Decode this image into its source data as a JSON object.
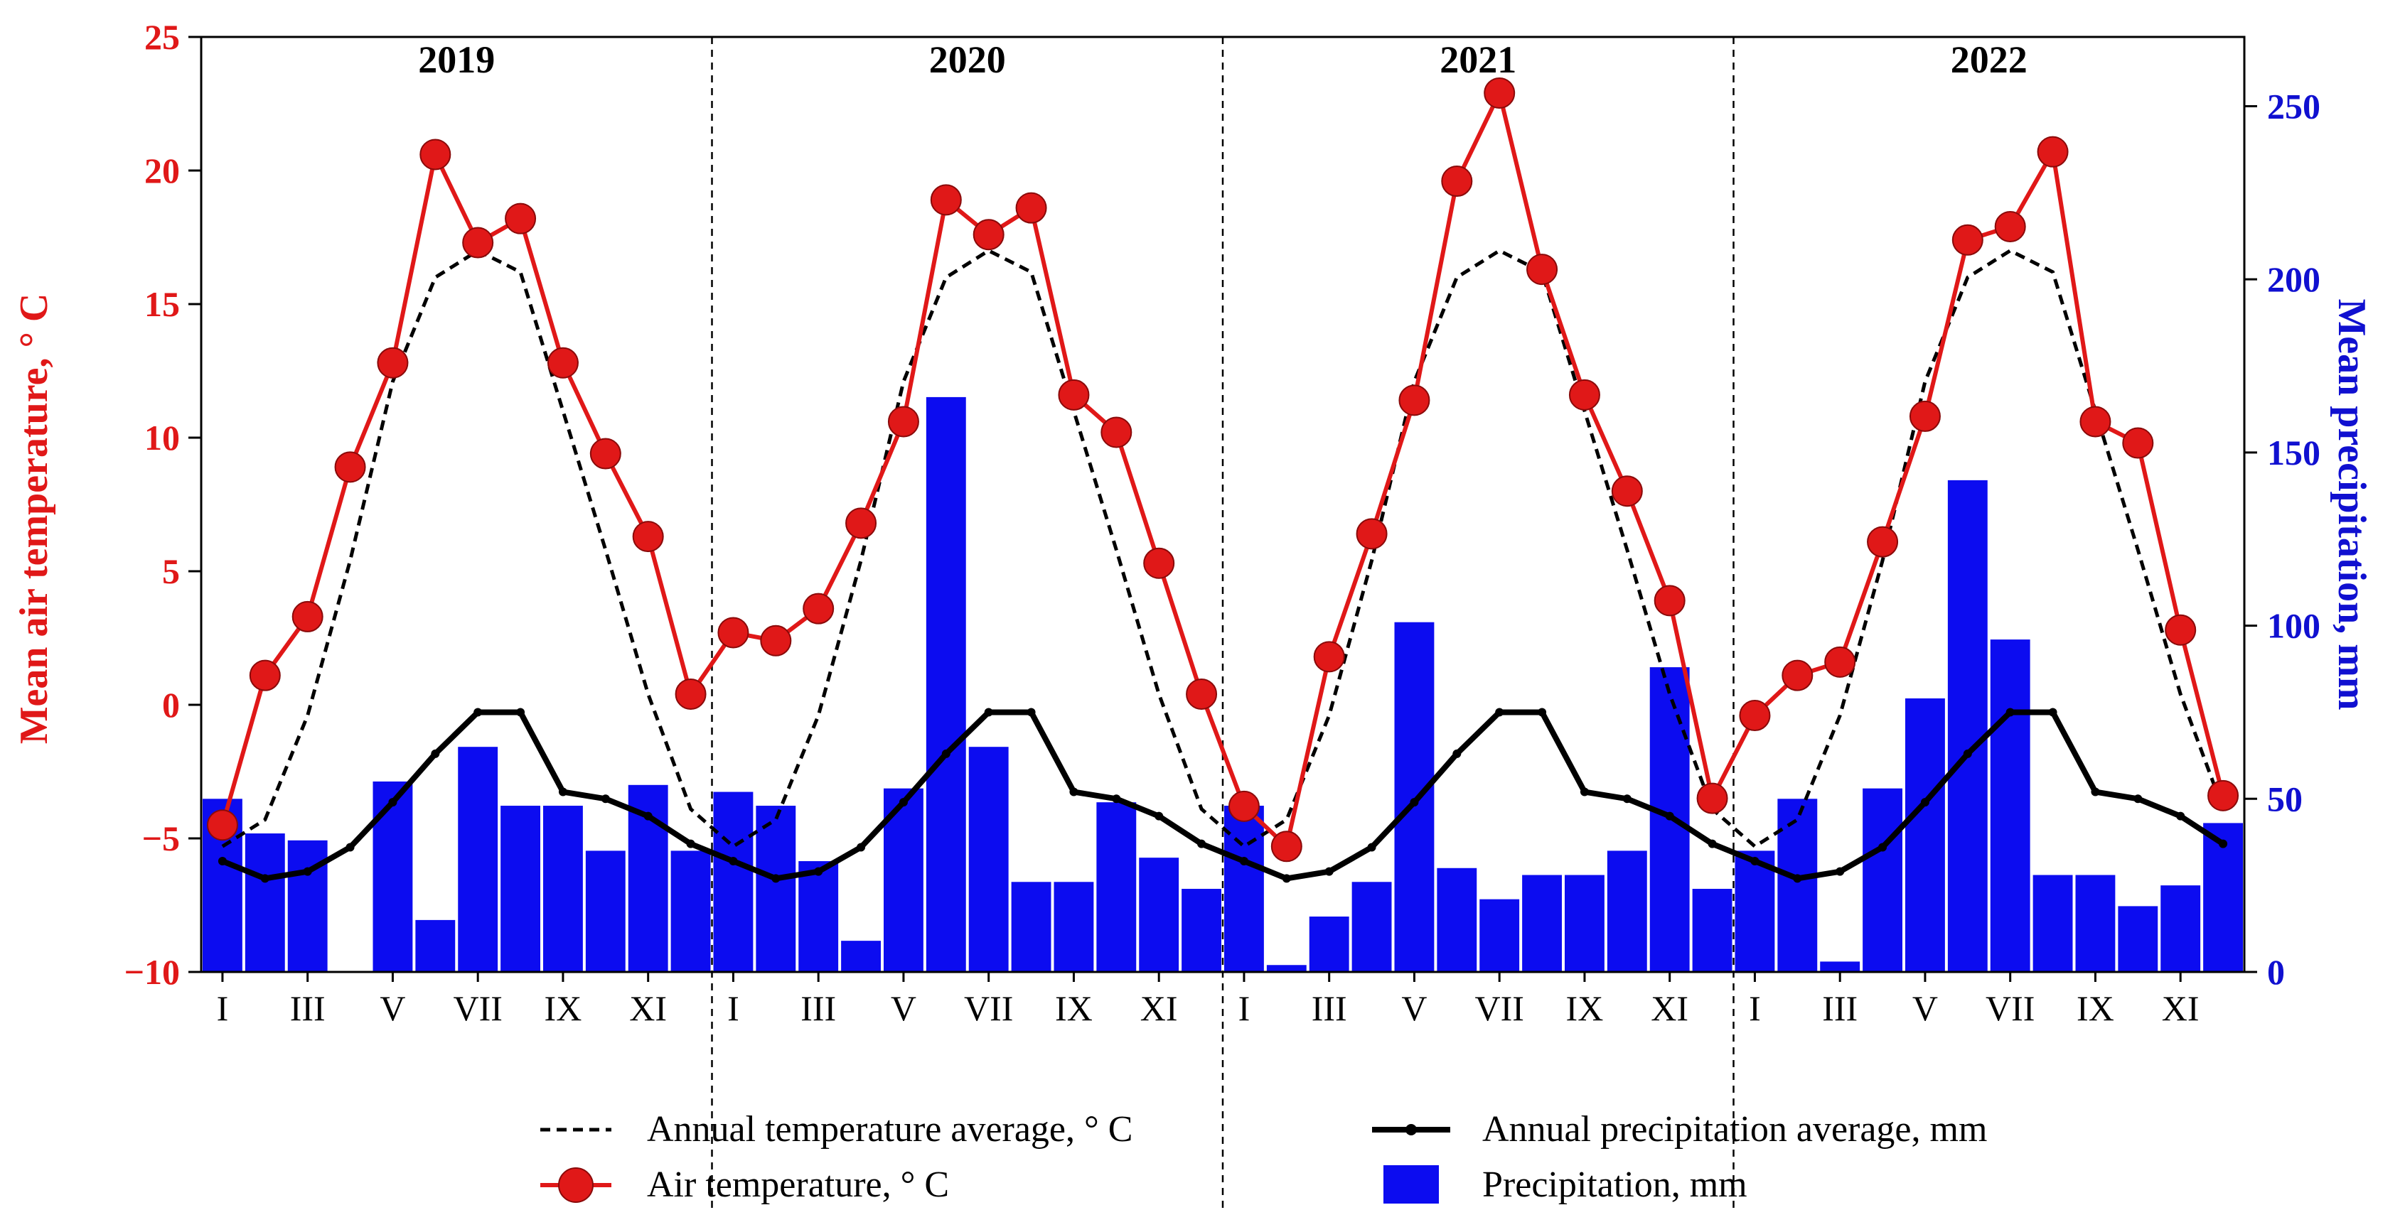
{
  "chart_data": {
    "type": "bar+line",
    "y_left": {
      "label": "Mean air temperature, ° C",
      "lim": [
        -10,
        25
      ],
      "ticks": [
        -10,
        -5,
        0,
        5,
        10,
        15,
        20,
        25
      ],
      "tick_labels": [
        "−10",
        "−5",
        "0",
        "5",
        "10",
        "15",
        "20",
        "25"
      ],
      "color": "#e01818"
    },
    "y_right": {
      "label": "Mean precipitation, mm",
      "lim": [
        0,
        270
      ],
      "ticks": [
        0,
        50,
        100,
        150,
        200,
        250
      ],
      "tick_labels": [
        "0",
        "50",
        "100",
        "150",
        "200",
        "250"
      ],
      "color": "#1010d0"
    },
    "years": [
      "2019",
      "2020",
      "2021",
      "2022"
    ],
    "month_tick_labels": [
      "I",
      "III",
      "V",
      "VII",
      "IX",
      "XI"
    ],
    "temperature": {
      "name": "Air temperature, ° C",
      "color": "#e01818",
      "values": [
        -4.5,
        1.1,
        3.3,
        8.9,
        12.8,
        20.6,
        17.3,
        18.2,
        12.8,
        9.4,
        6.3,
        0.4,
        2.7,
        2.4,
        3.6,
        6.8,
        10.6,
        18.9,
        17.6,
        18.6,
        11.6,
        10.2,
        5.3,
        0.4,
        -3.8,
        -5.3,
        1.8,
        6.4,
        11.4,
        19.6,
        22.9,
        16.3,
        11.6,
        8.0,
        3.9,
        -3.5,
        -0.4,
        1.1,
        1.6,
        6.1,
        10.8,
        17.4,
        17.9,
        20.7,
        10.6,
        9.8,
        2.8,
        -3.4
      ]
    },
    "temperature_avg": {
      "name": "Annual temperature average, ° C",
      "color": "#000000",
      "values": [
        -5.3,
        -4.3,
        -0.4,
        5.4,
        12.1,
        16.0,
        17.0,
        16.2,
        11.0,
        5.8,
        0.4,
        -3.9
      ]
    },
    "precipitation": {
      "name": "Precipitation, mm",
      "color": "#0c0cf0",
      "values": [
        50,
        40,
        38,
        0,
        55,
        15,
        65,
        48,
        48,
        35,
        54,
        35,
        52,
        48,
        32,
        9,
        53,
        166,
        65,
        26,
        26,
        49,
        33,
        24,
        48,
        2,
        16,
        26,
        101,
        30,
        21,
        28,
        28,
        35,
        88,
        24,
        35,
        50,
        3,
        53,
        79,
        142,
        96,
        28,
        28,
        19,
        25,
        43
      ]
    },
    "precipitation_avg": {
      "name": "Annual precipitation average, mm",
      "color": "#000000",
      "values": [
        32,
        27,
        29,
        36,
        49,
        63,
        75,
        75,
        52,
        50,
        45,
        37
      ]
    },
    "legend": {
      "placement": "bottom",
      "items": [
        "Annual temperature average, ° C",
        "Air temperature, ° C",
        "Annual precipitation average, mm",
        "Precipitation, mm"
      ]
    },
    "grid": false
  }
}
